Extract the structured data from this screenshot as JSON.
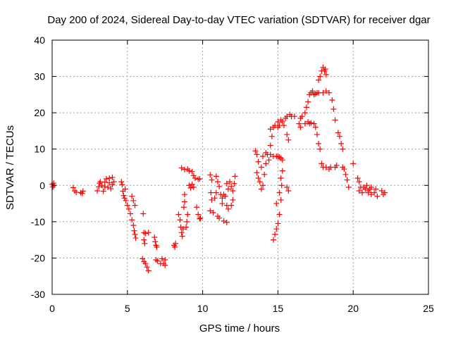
{
  "chart_data": {
    "type": "scatter",
    "title": "Day 200 of 2024, Sidereal Day-to-day VTEC variation (SDTVAR) for receiver dgar",
    "xlabel": "GPS time / hours",
    "ylabel": "SDTVAR / TECUs",
    "xlim": [
      0,
      25
    ],
    "ylim": [
      -30,
      40
    ],
    "xticks": [
      0,
      5,
      10,
      15,
      20,
      25
    ],
    "yticks": [
      -30,
      -20,
      -10,
      0,
      10,
      20,
      30,
      40
    ],
    "xtick_labels": [
      "0",
      "5",
      "10",
      "15",
      "20",
      "25"
    ],
    "ytick_labels": [
      "-30",
      "-20",
      "-10",
      "0",
      "10",
      "20",
      "30",
      "40"
    ],
    "grid": true,
    "marker": "+",
    "series": [
      {
        "name": "SDTVAR",
        "color": "#ff0000",
        "points": [
          [
            0.0,
            0.3
          ],
          [
            0.05,
            -0.4
          ],
          [
            0.1,
            0.6
          ],
          [
            0.12,
            0.0
          ],
          [
            1.4,
            -0.6
          ],
          [
            1.5,
            -1.5
          ],
          [
            1.6,
            -1.9
          ],
          [
            1.9,
            -2.0
          ],
          [
            2.0,
            -2.2
          ],
          [
            2.05,
            -1.6
          ],
          [
            3.0,
            -1.5
          ],
          [
            3.1,
            -0.4
          ],
          [
            3.15,
            0.6
          ],
          [
            3.2,
            1.0
          ],
          [
            3.3,
            0.0
          ],
          [
            3.4,
            -1.6
          ],
          [
            3.5,
            -0.4
          ],
          [
            3.5,
            0.9
          ],
          [
            3.6,
            1.8
          ],
          [
            3.7,
            -0.5
          ],
          [
            3.8,
            0.7
          ],
          [
            3.8,
            2.0
          ],
          [
            3.9,
            -0.9
          ],
          [
            4.0,
            0.2
          ],
          [
            4.0,
            2.2
          ],
          [
            4.1,
            1.0
          ],
          [
            4.6,
            1.0
          ],
          [
            4.65,
            0.2
          ],
          [
            4.7,
            -1.6
          ],
          [
            4.75,
            -2.8
          ],
          [
            4.8,
            -3.5
          ],
          [
            4.85,
            -1.0
          ],
          [
            4.9,
            -4.2
          ],
          [
            5.0,
            -5.5
          ],
          [
            5.1,
            -6.5
          ],
          [
            5.2,
            -7.8
          ],
          [
            5.3,
            -9.5
          ],
          [
            5.4,
            -11.0
          ],
          [
            5.45,
            -12.5
          ],
          [
            5.5,
            -13.5
          ],
          [
            5.55,
            -14.5
          ],
          [
            5.3,
            -3.0
          ],
          [
            5.4,
            -4.2
          ],
          [
            5.5,
            -5.5
          ],
          [
            6.05,
            -7.8
          ],
          [
            6.1,
            -13.0
          ],
          [
            6.2,
            -13.2
          ],
          [
            6.4,
            -13.0
          ],
          [
            6.1,
            -15.0
          ],
          [
            6.15,
            -16.0
          ],
          [
            6.0,
            -20.2
          ],
          [
            6.1,
            -21.0
          ],
          [
            6.2,
            -21.5
          ],
          [
            6.3,
            -22.5
          ],
          [
            6.4,
            -23.5
          ],
          [
            6.8,
            -14.3
          ],
          [
            6.85,
            -15.5
          ],
          [
            6.9,
            -16.5
          ],
          [
            6.95,
            -17.0
          ],
          [
            6.9,
            -20.5
          ],
          [
            7.0,
            -20.8
          ],
          [
            7.2,
            -21.5
          ],
          [
            7.3,
            -20.2
          ],
          [
            7.4,
            -21.5
          ],
          [
            7.5,
            -22.0
          ],
          [
            7.5,
            -20.5
          ],
          [
            8.1,
            -16.5
          ],
          [
            8.15,
            -17.0
          ],
          [
            8.2,
            -16.0
          ],
          [
            8.4,
            -8.0
          ],
          [
            8.5,
            -9.5
          ],
          [
            8.55,
            -11.5
          ],
          [
            8.6,
            -13.0
          ],
          [
            8.65,
            -14.0
          ],
          [
            8.7,
            -12.0
          ],
          [
            8.75,
            -6.0
          ],
          [
            8.8,
            -4.5
          ],
          [
            8.8,
            -2.5
          ],
          [
            8.9,
            -11.5
          ],
          [
            8.95,
            -10.0
          ],
          [
            9.0,
            -8.0
          ],
          [
            8.6,
            4.8
          ],
          [
            8.8,
            4.4
          ],
          [
            9.0,
            4.5
          ],
          [
            9.1,
            4.0
          ],
          [
            9.3,
            3.8
          ],
          [
            9.4,
            2.7
          ],
          [
            9.5,
            2.0
          ],
          [
            9.7,
            1.7
          ],
          [
            9.8,
            1.8
          ],
          [
            9.1,
            0.0
          ],
          [
            9.2,
            -0.7
          ],
          [
            9.3,
            0.3
          ],
          [
            9.4,
            -0.5
          ],
          [
            9.6,
            -6.0
          ],
          [
            9.7,
            -8.0
          ],
          [
            9.8,
            -9.2
          ],
          [
            9.85,
            -9.0
          ],
          [
            10.5,
            2.9
          ],
          [
            10.6,
            1.5
          ],
          [
            10.55,
            -2.0
          ],
          [
            10.6,
            -4.0
          ],
          [
            10.5,
            -7.0
          ],
          [
            10.7,
            -7.5
          ],
          [
            10.8,
            -3.5
          ],
          [
            10.9,
            -2.0
          ],
          [
            11.0,
            -8.5
          ],
          [
            11.1,
            -9.0
          ],
          [
            10.9,
            2.5
          ],
          [
            11.0,
            1.0
          ],
          [
            11.1,
            -0.3
          ],
          [
            11.2,
            -2.5
          ],
          [
            11.3,
            -3.5
          ],
          [
            11.4,
            -2.5
          ],
          [
            11.3,
            -5.0
          ],
          [
            11.4,
            -9.8
          ],
          [
            11.6,
            -10.2
          ],
          [
            11.5,
            -3.0
          ],
          [
            11.6,
            -5.5
          ],
          [
            11.7,
            -6.5
          ],
          [
            11.9,
            -5.5
          ],
          [
            12.0,
            -4.0
          ],
          [
            11.6,
            0.5
          ],
          [
            11.7,
            -1.0
          ],
          [
            11.8,
            1.0
          ],
          [
            11.9,
            -0.3
          ],
          [
            12.0,
            -1.5
          ],
          [
            12.1,
            0.5
          ],
          [
            12.15,
            2.5
          ],
          [
            13.5,
            9.5
          ],
          [
            13.6,
            8.5
          ],
          [
            13.6,
            3.5
          ],
          [
            13.7,
            2.0
          ],
          [
            13.7,
            6.5
          ],
          [
            13.8,
            1.0
          ],
          [
            13.9,
            5.0
          ],
          [
            14.0,
            8.0
          ],
          [
            13.9,
            -1.0
          ],
          [
            14.0,
            0.0
          ],
          [
            14.1,
            3.0
          ],
          [
            14.2,
            6.0
          ],
          [
            14.2,
            9.0
          ],
          [
            14.3,
            8.5
          ],
          [
            14.4,
            7.0
          ],
          [
            14.5,
            8.5
          ],
          [
            14.7,
            8.0
          ],
          [
            14.9,
            8.0
          ],
          [
            15.0,
            7.9
          ],
          [
            15.1,
            7.8
          ],
          [
            15.2,
            7.5
          ],
          [
            15.3,
            7.0
          ],
          [
            15.3,
            4.0
          ],
          [
            15.25,
            0.0
          ],
          [
            15.2,
            -4.0
          ],
          [
            15.1,
            -8.0
          ],
          [
            15.0,
            -10.5
          ],
          [
            14.9,
            -12.0
          ],
          [
            14.8,
            -13.5
          ],
          [
            14.7,
            -15.0
          ],
          [
            14.9,
            -5.0
          ],
          [
            15.1,
            -2.0
          ],
          [
            15.2,
            2.0
          ],
          [
            14.5,
            11.0
          ],
          [
            14.6,
            13.5
          ],
          [
            14.5,
            15.5
          ],
          [
            14.7,
            16.0
          ],
          [
            14.8,
            16.5
          ],
          [
            15.0,
            16.0
          ],
          [
            15.0,
            17.5
          ],
          [
            15.1,
            16.5
          ],
          [
            15.2,
            18.0
          ],
          [
            15.3,
            17.5
          ],
          [
            15.4,
            16.5
          ],
          [
            15.5,
            18.5
          ],
          [
            15.6,
            19.0
          ],
          [
            15.8,
            19.5
          ],
          [
            15.9,
            19.0
          ],
          [
            15.6,
            14.0
          ],
          [
            15.7,
            12.5
          ],
          [
            15.6,
            -0.5
          ],
          [
            15.7,
            -1.5
          ],
          [
            16.1,
            19.0
          ],
          [
            16.5,
            18.5
          ],
          [
            16.6,
            19.0
          ],
          [
            16.8,
            20.0
          ],
          [
            16.8,
            17.0
          ],
          [
            16.4,
            17.0
          ],
          [
            16.5,
            16.0
          ],
          [
            17.0,
            17.5
          ],
          [
            17.1,
            17.0
          ],
          [
            17.2,
            17.2
          ],
          [
            16.9,
            21.5
          ],
          [
            17.0,
            23.0
          ],
          [
            17.1,
            25.0
          ],
          [
            17.2,
            25.5
          ],
          [
            17.3,
            26.0
          ],
          [
            17.4,
            25.0
          ],
          [
            17.5,
            25.2
          ],
          [
            17.6,
            25.5
          ],
          [
            17.7,
            25.5
          ],
          [
            17.7,
            29.0
          ],
          [
            17.8,
            30.0
          ],
          [
            17.9,
            31.5
          ],
          [
            18.0,
            32.5
          ],
          [
            18.1,
            31.5
          ],
          [
            18.2,
            30.5
          ],
          [
            18.15,
            32.0
          ],
          [
            17.4,
            17.0
          ],
          [
            17.5,
            16.0
          ],
          [
            17.6,
            14.0
          ],
          [
            17.7,
            11.5
          ],
          [
            17.8,
            10.0
          ],
          [
            18.0,
            25.5
          ],
          [
            18.2,
            26.0
          ],
          [
            18.4,
            25.5
          ],
          [
            18.6,
            23.5
          ],
          [
            18.7,
            21.0
          ],
          [
            18.8,
            18.0
          ],
          [
            17.9,
            6.0
          ],
          [
            18.0,
            5.0
          ],
          [
            18.2,
            5.0
          ],
          [
            18.4,
            4.5
          ],
          [
            18.5,
            5.0
          ],
          [
            18.8,
            5.0
          ],
          [
            18.9,
            5.5
          ],
          [
            19.0,
            14.5
          ],
          [
            19.1,
            13.5
          ],
          [
            19.2,
            11.5
          ],
          [
            19.3,
            10.0
          ],
          [
            19.3,
            5.0
          ],
          [
            19.4,
            4.5
          ],
          [
            19.5,
            3.0
          ],
          [
            19.6,
            1.5
          ],
          [
            19.7,
            -0.5
          ],
          [
            20.0,
            6.0
          ],
          [
            20.3,
            2.0
          ],
          [
            20.4,
            1.0
          ],
          [
            20.5,
            -0.5
          ],
          [
            20.4,
            -1.5
          ],
          [
            20.6,
            -2.0
          ],
          [
            20.7,
            -0.5
          ],
          [
            20.8,
            -1.0
          ],
          [
            20.9,
            0.0
          ],
          [
            21.0,
            -1.5
          ],
          [
            21.1,
            -1.0
          ],
          [
            21.2,
            -0.5
          ],
          [
            21.0,
            -2.0
          ],
          [
            21.2,
            -2.5
          ],
          [
            21.4,
            -2.0
          ],
          [
            21.5,
            -1.0
          ],
          [
            21.6,
            -3.0
          ],
          [
            21.9,
            -1.5
          ],
          [
            22.0,
            -2.5
          ],
          [
            22.1,
            -2.0
          ]
        ]
      }
    ]
  }
}
